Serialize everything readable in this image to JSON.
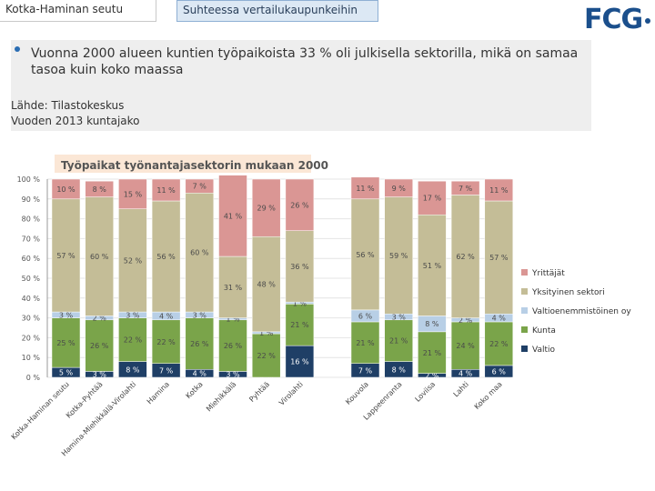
{
  "header": {
    "left_title": "Kotka-Haminan seutu",
    "tab_label": "Suhteessa vertailukaupunkeihin",
    "logo_text": "FCG"
  },
  "content": {
    "bullet": "Vuonna 2000 alueen kuntien työpaikoista 33 % oli julkisella sektorilla, mikä on samaa tasoa kuin koko maassa",
    "source_line1": "Lähde: Tilastokeskus",
    "source_line2": "Vuoden 2013 kuntajako"
  },
  "colors": {
    "accent": "#2a6db3",
    "logo": "#1b4f8c"
  },
  "chart_data": {
    "type": "bar",
    "stacked": true,
    "title": "Työpaikat työnantajasektorin mukaan 2000",
    "yticks": [
      "0 %",
      "10 %",
      "20 %",
      "30 %",
      "40 %",
      "50 %",
      "60 %",
      "70 %",
      "80 %",
      "90 %",
      "100 %"
    ],
    "ylim": [
      0,
      100
    ],
    "categories": [
      "Kotka-Haminan seutu",
      "Kotka-Pyhtää",
      "Hamina-Miehikkälä-Virolahti",
      "Hamina",
      "Kotka",
      "Miehikkälä",
      "Pyhtää",
      "Virolahti",
      "Kouvola",
      "Lappeenranta",
      "Loviisa",
      "Lahti",
      "Koko maa"
    ],
    "group_break_after": 7,
    "series": [
      {
        "name": "Valtio",
        "color": "#1f3f66",
        "values": [
          5,
          3,
          8,
          7,
          4,
          3,
          0,
          16,
          7,
          8,
          2,
          4,
          6
        ],
        "labels": [
          "5 %",
          "3 %",
          "8 %",
          "7 %",
          "4 %",
          "3 %",
          "0 %",
          "16 %",
          "7 %",
          "8 %",
          "2 %",
          "4 %",
          "6 %"
        ]
      },
      {
        "name": "Kunta",
        "color": "#7aa44a",
        "values": [
          25,
          26,
          22,
          22,
          26,
          26,
          22,
          21,
          21,
          21,
          21,
          24,
          22
        ],
        "labels": [
          "25 %",
          "26 %",
          "22 %",
          "22 %",
          "26 %",
          "26 %",
          "22 %",
          "21 %",
          "21 %",
          "21 %",
          "21 %",
          "24 %",
          "22 %"
        ]
      },
      {
        "name": "Valtioenemmistöinen oy",
        "color": "#b8cfe6",
        "values": [
          3,
          2,
          3,
          4,
          3,
          1,
          1,
          1,
          6,
          3,
          8,
          2,
          4
        ],
        "labels": [
          "3 %",
          "2 %",
          "3 %",
          "4 %",
          "3 %",
          "1 %",
          "1 %",
          "1 %",
          "6 %",
          "3 %",
          "8 %",
          "2 %",
          "4 %"
        ]
      },
      {
        "name": "Yksityinen sektori",
        "color": "#c4bd97",
        "values": [
          57,
          60,
          52,
          56,
          60,
          31,
          48,
          36,
          56,
          59,
          51,
          62,
          57
        ],
        "labels": [
          "57 %",
          "60 %",
          "52 %",
          "56 %",
          "60 %",
          "31 %",
          "48 %",
          "36 %",
          "56 %",
          "59 %",
          "51 %",
          "62 %",
          "57 %"
        ]
      },
      {
        "name": "Yrittäjät",
        "color": "#da9694",
        "values": [
          10,
          8,
          15,
          11,
          7,
          41,
          29,
          26,
          11,
          9,
          17,
          7,
          11
        ],
        "labels": [
          "10 %",
          "8 %",
          "15 %",
          "11 %",
          "7 %",
          "41 %",
          "29 %",
          "26 %",
          "11 %",
          "9 %",
          "17 %",
          "7 %",
          "11 %"
        ]
      }
    ]
  }
}
